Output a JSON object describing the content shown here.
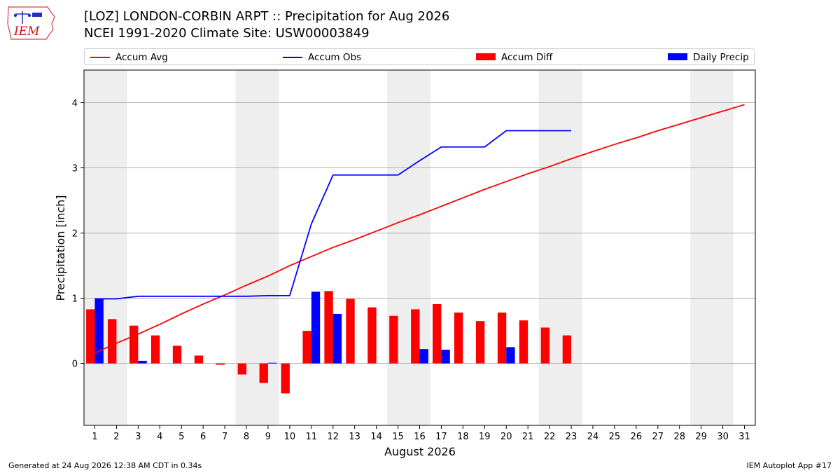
{
  "header": {
    "logo_text": "IEM",
    "title_line1": "[LOZ] LONDON-CORBIN ARPT :: Precipitation for Aug 2026",
    "title_line2": "NCEI 1991-2020 Climate Site: USW00003849"
  },
  "legend": {
    "items": [
      {
        "label": "Accum Avg",
        "kind": "line",
        "color": "#ff0000"
      },
      {
        "label": "Accum Obs",
        "kind": "line",
        "color": "#0000ff"
      },
      {
        "label": "Accum Diff",
        "kind": "box",
        "color": "#ff0000"
      },
      {
        "label": "Daily Precip",
        "kind": "box",
        "color": "#0000ff"
      }
    ]
  },
  "footer": {
    "left": "Generated at 24 Aug 2026 12:38 AM CDT in 0.34s",
    "right": "IEM Autoplot App #17"
  },
  "chart_data": {
    "type": "bar",
    "xlabel": "August 2026",
    "ylabel": "Precipitation [inch]",
    "xlim": [
      0.5,
      31.5
    ],
    "ylim": [
      -0.95,
      4.5
    ],
    "yticks": [
      0,
      1,
      2,
      3,
      4
    ],
    "grid": "horizontal",
    "weekend_shading": [
      [
        0.5,
        2.5
      ],
      [
        7.5,
        9.5
      ],
      [
        14.5,
        16.5
      ],
      [
        21.5,
        23.5
      ],
      [
        28.5,
        30.5
      ]
    ],
    "colors": {
      "avg": "#ff0000",
      "obs": "#0000ff",
      "diff": "#ff0000",
      "daily": "#0000ff",
      "shade": "#eeeeee",
      "grid": "#b0b0b0"
    },
    "days": [
      1,
      2,
      3,
      4,
      5,
      6,
      7,
      8,
      9,
      10,
      11,
      12,
      13,
      14,
      15,
      16,
      17,
      18,
      19,
      20,
      21,
      22,
      23,
      24,
      25,
      26,
      27,
      28,
      29,
      30,
      31
    ],
    "accum_avg": [
      0.16,
      0.31,
      0.45,
      0.6,
      0.76,
      0.91,
      1.05,
      1.2,
      1.34,
      1.5,
      1.64,
      1.78,
      1.9,
      2.03,
      2.16,
      2.28,
      2.41,
      2.54,
      2.67,
      2.79,
      2.91,
      3.02,
      3.14,
      3.25,
      3.36,
      3.46,
      3.57,
      3.67,
      3.77,
      3.87,
      3.97
    ],
    "accum_obs": [
      0.99,
      0.99,
      1.03,
      1.03,
      1.03,
      1.03,
      1.03,
      1.03,
      1.04,
      1.04,
      2.14,
      2.89,
      2.89,
      2.89,
      2.89,
      3.11,
      3.32,
      3.32,
      3.32,
      3.57,
      3.57,
      3.57,
      3.57
    ],
    "accum_diff": [
      0.83,
      0.68,
      0.58,
      0.43,
      0.27,
      0.12,
      -0.02,
      -0.17,
      -0.3,
      -0.46,
      0.5,
      1.11,
      0.99,
      0.86,
      0.73,
      0.83,
      0.91,
      0.78,
      0.65,
      0.78,
      0.66,
      0.55,
      0.43
    ],
    "daily_precip": [
      0.99,
      0.0,
      0.04,
      0.0,
      0.0,
      0.0,
      0.0,
      0.0,
      0.01,
      0.0,
      1.1,
      0.76,
      0.0,
      0.0,
      0.0,
      0.22,
      0.21,
      0.0,
      0.0,
      0.25,
      0.0,
      0.0,
      0.0
    ]
  }
}
